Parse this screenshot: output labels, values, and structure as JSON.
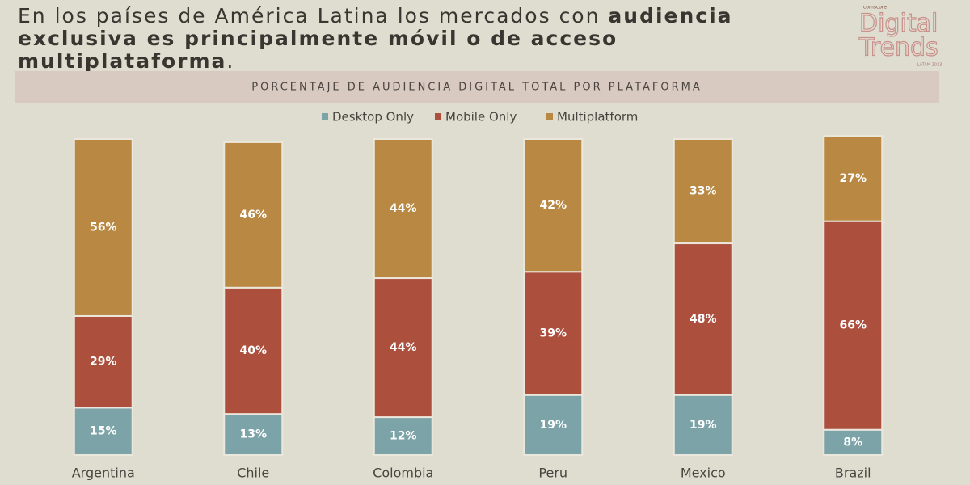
{
  "chart_data": {
    "type": "stacked_bar",
    "title": [
      "En los países de América Latina los mercados con",
      "audiencia exclusiva es principalmente móvil o de acceso multiplataforma",
      "."
    ],
    "subtitle": "PORCENTAJE DE AUDIENCIA DIGITAL TOTAL POR PLATAFORMA",
    "categories": [
      "Argentina",
      "Chile",
      "Colombia",
      "Peru",
      "Mexico",
      "Brazil"
    ],
    "series": [
      {
        "name": "Desktop Only",
        "color": "#7ca3a8",
        "values": [
          15,
          13,
          12,
          19,
          19,
          8
        ],
        "value_labels": [
          "15%",
          "13%",
          "12%",
          "19%",
          "19%",
          "8%"
        ]
      },
      {
        "name": "Mobile Only",
        "color": "#ad4f3d",
        "values": [
          29,
          40,
          44,
          39,
          48,
          66
        ],
        "value_labels": [
          "29%",
          "40%",
          "44%",
          "39%",
          "48%",
          "66%"
        ]
      },
      {
        "name": "Multiplatform",
        "color": "#b98842",
        "values": [
          56,
          46,
          44,
          42,
          33,
          27
        ],
        "value_labels": [
          "56%",
          "46%",
          "44%",
          "42%",
          "33%",
          "27%"
        ]
      }
    ],
    "ylim": [
      0,
      100
    ]
  },
  "logo": {
    "brand": "comscore",
    "line1": "Digital",
    "line2": "Trends",
    "sub": "LATAM 2023"
  }
}
